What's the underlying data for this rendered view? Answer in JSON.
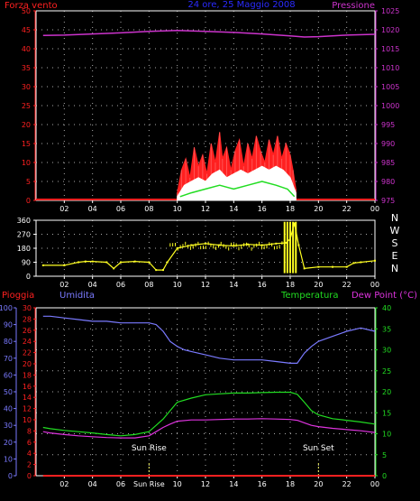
{
  "colors": {
    "wind": "#ff2020",
    "pressure": "#cc33cc",
    "header_date": "#2a2aff",
    "direction": "#ffff22",
    "humidity": "#7a7aff",
    "temperature": "#22dd22",
    "dew_point": "#dd33dd",
    "rain": "#ff2020",
    "axis": "#ffffff",
    "grid": "#aaaaaa",
    "sun": "#ffff66"
  },
  "chart_data": [
    {
      "type": "line",
      "labels": {
        "left_title": "Forza vento",
        "center_title": "24 ore, 25 Maggio 2008",
        "right_title": "Pressione"
      },
      "x_ticks": [
        "02",
        "04",
        "06",
        "08",
        "10",
        "12",
        "14",
        "16",
        "18",
        "20",
        "22",
        "00"
      ],
      "x_range": [
        0,
        24
      ],
      "left_axis": {
        "range": [
          0,
          50
        ],
        "ticks": [
          "0",
          "5",
          "10",
          "15",
          "20",
          "25",
          "30",
          "35",
          "40",
          "45",
          "50"
        ]
      },
      "right_axis": {
        "range": [
          975,
          1025
        ],
        "ticks": [
          "975",
          "980",
          "985",
          "990",
          "995",
          "1000",
          "1005",
          "1010",
          "1015",
          "1020",
          "1025"
        ]
      },
      "grid": true,
      "series": [
        {
          "color_key": "pressure",
          "axis": "right",
          "x": [
            0.5,
            2,
            4,
            6,
            8,
            10,
            12,
            14,
            16,
            18,
            19,
            20,
            22,
            24
          ],
          "y": [
            1018.5,
            1018.6,
            1018.9,
            1019.2,
            1019.6,
            1019.8,
            1019.6,
            1019.3,
            1018.9,
            1018.4,
            1018.1,
            1018.2,
            1018.6,
            1018.8
          ]
        },
        {
          "color_key": "wind",
          "axis": "left",
          "kind": "gust",
          "x": [
            10.0,
            10.3,
            10.6,
            10.9,
            11.2,
            11.5,
            11.8,
            12.1,
            12.4,
            12.7,
            13.0,
            13.2,
            13.5,
            13.8,
            14.1,
            14.4,
            14.7,
            15.0,
            15.3,
            15.6,
            15.9,
            16.2,
            16.5,
            16.8,
            17.1,
            17.4,
            17.7,
            18.0,
            18.2,
            18.4
          ],
          "y": [
            2,
            8,
            11,
            6,
            14,
            9,
            12,
            7,
            15,
            10,
            18,
            11,
            14,
            8,
            13,
            16,
            9,
            15,
            11,
            17,
            13,
            10,
            16,
            12,
            17,
            11,
            15,
            12,
            8,
            3
          ]
        },
        {
          "color_key": "wind",
          "axis": "left",
          "kind": "average",
          "x": [
            10.0,
            10.5,
            11.0,
            11.5,
            12.0,
            12.5,
            13.0,
            13.5,
            14.0,
            14.5,
            15.0,
            15.5,
            16.0,
            16.5,
            17.0,
            17.5,
            18.0,
            18.4
          ],
          "y": [
            1,
            4,
            5,
            6,
            5,
            7,
            8,
            6,
            7,
            8,
            7,
            8,
            9,
            8,
            9,
            8,
            6,
            2
          ]
        },
        {
          "color_key": "temperature",
          "axis": "left",
          "kind": "average",
          "x": [
            10.2,
            11.0,
            12.0,
            13.0,
            14.0,
            15.0,
            16.0,
            17.0,
            17.8,
            18.3
          ],
          "y": [
            1,
            2,
            3,
            4,
            3,
            4,
            5,
            4,
            3,
            1
          ]
        }
      ]
    },
    {
      "type": "scatter",
      "labels": {
        "right_letters": [
          "N",
          "W",
          "S",
          "E",
          "N"
        ]
      },
      "x_ticks": [
        "02",
        "04",
        "06",
        "08",
        "10",
        "12",
        "14",
        "16",
        "18",
        "20",
        "22",
        "00"
      ],
      "y_axis": {
        "range": [
          0,
          360
        ],
        "ticks": [
          "0",
          "90",
          "180",
          "270",
          "360"
        ]
      },
      "grid": true,
      "series": [
        {
          "color_key": "direction",
          "x": [
            0.5,
            2.0,
            3.0,
            3.5,
            4.0,
            5.0,
            5.5,
            6.0,
            7.0,
            8.0,
            8.5,
            9.0,
            9.3,
            10.0,
            11.0,
            12.0,
            13.0,
            14.0,
            15.0,
            16.0,
            17.0,
            17.7,
            18.0,
            18.3,
            18.6,
            19.0,
            20.0,
            21.0,
            22.0,
            22.5,
            23.0,
            24.0
          ],
          "y": [
            70,
            70,
            90,
            95,
            95,
            90,
            50,
            90,
            95,
            90,
            40,
            40,
            90,
            180,
            200,
            210,
            200,
            195,
            205,
            200,
            210,
            215,
            240,
            340,
            200,
            50,
            60,
            60,
            60,
            85,
            90,
            100
          ]
        }
      ]
    },
    {
      "type": "line",
      "labels": {
        "rain": "Pioggia",
        "humidity": "Umidita",
        "temperature": "Temperatura",
        "dew_point": "Dew Point (°C)",
        "sun_rise": "Sun Rise",
        "sun_set": "Sun Set"
      },
      "x_ticks": [
        "02",
        "04",
        "06",
        "Sun Rise",
        "10",
        "12",
        "14",
        "16",
        "18",
        "20",
        "22",
        "00"
      ],
      "x_range": [
        0,
        24
      ],
      "rain_axis": {
        "range": [
          0,
          30
        ],
        "ticks": [
          "0",
          "2",
          "4",
          "6",
          "8",
          "10",
          "12",
          "14",
          "16",
          "18",
          "20",
          "22",
          "24",
          "26",
          "28",
          "30"
        ]
      },
      "humidity_axis": {
        "range": [
          0,
          100
        ],
        "ticks": [
          "0",
          "10",
          "20",
          "30",
          "40",
          "50",
          "60",
          "70",
          "80",
          "90",
          "100"
        ]
      },
      "temp_axis": {
        "range": [
          0,
          40
        ],
        "ticks": [
          "0",
          "5",
          "10",
          "15",
          "20",
          "25",
          "30",
          "35",
          "40"
        ]
      },
      "sun_events": {
        "sunrise_hour": 8.0,
        "sunset_hour": 20.0
      },
      "grid": true,
      "series": [
        {
          "color_key": "humidity",
          "axis": "humidity",
          "x": [
            0.5,
            1,
            2,
            3,
            4,
            5,
            6,
            7,
            8,
            8.5,
            9,
            9.5,
            10,
            10.5,
            11,
            12,
            13,
            14,
            15,
            16,
            17,
            18,
            18.5,
            19,
            19.5,
            20,
            21,
            22,
            23,
            24
          ],
          "y": [
            95,
            95,
            94,
            93,
            92,
            92,
            91,
            91,
            91,
            90,
            86,
            80,
            77,
            75,
            74,
            72,
            70,
            69,
            69,
            69,
            68,
            67,
            67,
            73,
            77,
            80,
            83,
            86,
            88,
            86
          ]
        },
        {
          "color_key": "temperature",
          "axis": "temp",
          "x": [
            0.5,
            1,
            2,
            3,
            4,
            5,
            6,
            7,
            8,
            8.5,
            9,
            9.5,
            10,
            11,
            12,
            13,
            14,
            15,
            16,
            17,
            18,
            18.5,
            19,
            19.5,
            20,
            21,
            22,
            23,
            24
          ],
          "y": [
            11.5,
            11.2,
            10.8,
            10.5,
            10.2,
            9.8,
            9.5,
            9.8,
            10.5,
            12,
            13.5,
            15.5,
            17.5,
            18.5,
            19.3,
            19.5,
            19.7,
            19.7,
            19.8,
            19.9,
            19.9,
            19.4,
            17.5,
            15.5,
            14.5,
            13.6,
            13.2,
            12.8,
            12.3
          ]
        },
        {
          "color_key": "dew_point",
          "axis": "temp",
          "x": [
            0.5,
            1,
            2,
            3,
            4,
            5,
            6,
            7,
            8,
            8.5,
            9,
            9.5,
            10,
            11,
            12,
            13,
            14,
            15,
            16,
            17,
            18,
            18.5,
            19,
            19.5,
            20,
            21,
            22,
            23,
            24
          ],
          "y": [
            10.5,
            10.2,
            9.8,
            9.5,
            9.3,
            9.1,
            9.0,
            9.0,
            9.5,
            10.5,
            11.5,
            12.3,
            13.0,
            13.3,
            13.3,
            13.4,
            13.5,
            13.5,
            13.6,
            13.5,
            13.4,
            13.2,
            12.6,
            12.0,
            11.7,
            11.3,
            11.0,
            10.7,
            10.3
          ]
        },
        {
          "color_key": "rain",
          "axis": "rain",
          "x": [
            0.5,
            24
          ],
          "y": [
            0,
            0
          ]
        }
      ]
    }
  ]
}
